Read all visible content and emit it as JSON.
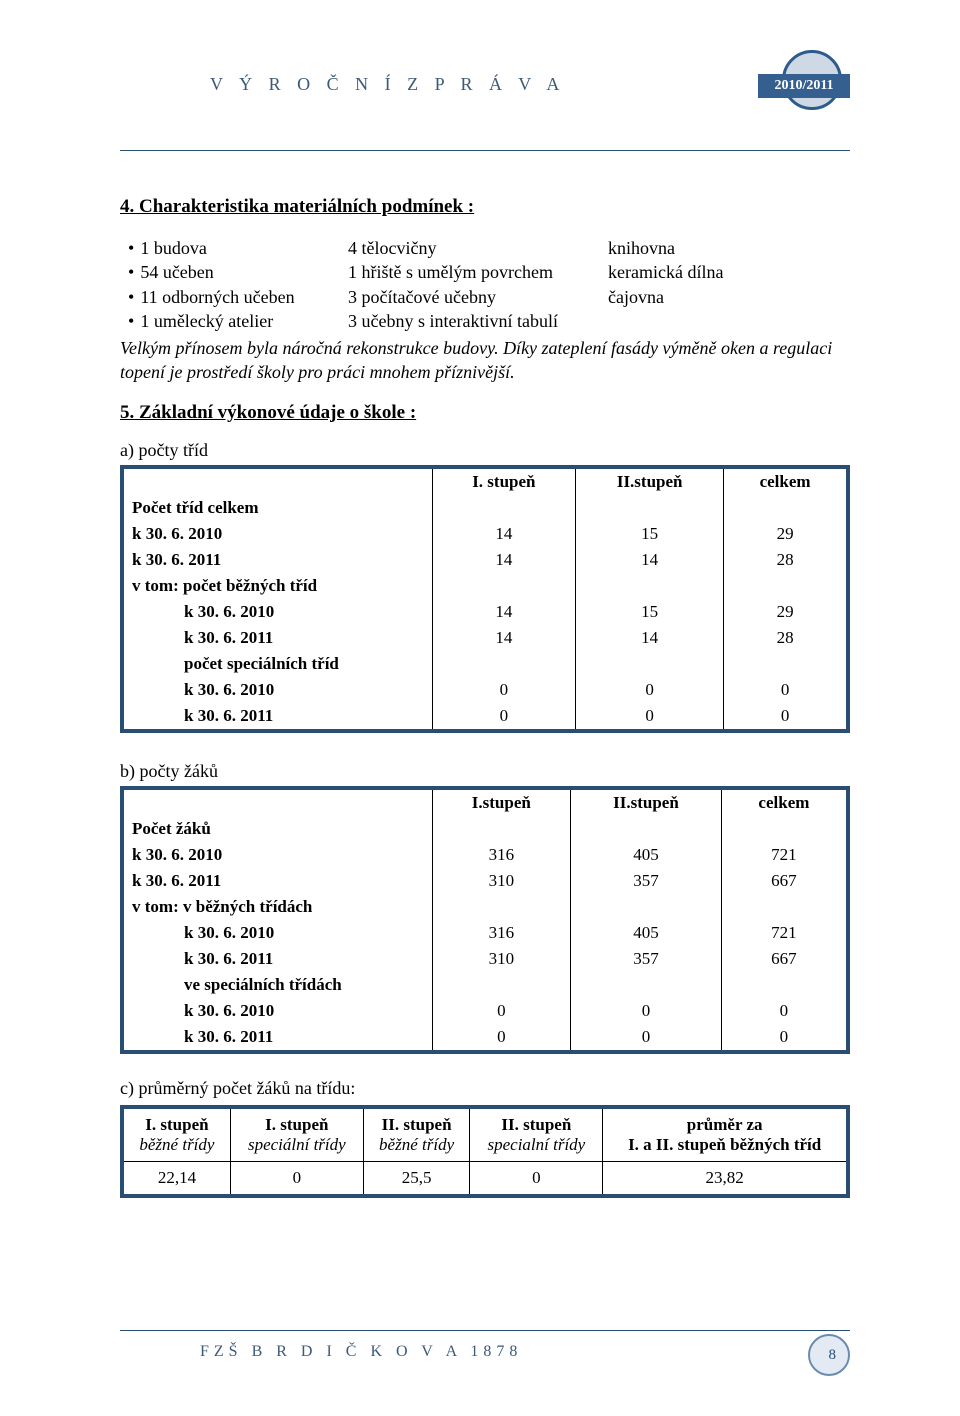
{
  "header": {
    "title": "V Ý R O Č N Í   Z P R Á V A",
    "badge": "2010/2011"
  },
  "section4": {
    "title": "4. Charakteristika materiálních podmínek :",
    "col1": [
      "1 budova",
      "54 učeben",
      "11 odborných učeben",
      "1 umělecký atelier"
    ],
    "col2": [
      "4 tělocvičny",
      "1 hřiště s umělým povrchem",
      "3 počítačové učebny",
      "3 učebny s interaktivní tabulí"
    ],
    "col3": [
      "knihovna",
      "keramická dílna",
      "čajovna"
    ],
    "note": "Velkým přínosem byla náročná rekonstrukce budovy. Díky zateplení fasády výměně oken a regulaci topení je prostředí školy pro práci mnohem příznivější."
  },
  "section5": {
    "title": " 5. Základní výkonové údaje o škole :",
    "table_a": {
      "label": "a) počty tříd",
      "columns": [
        "",
        "I. stupeň",
        "II.stupeň",
        "celkem"
      ],
      "rows": [
        {
          "label": "Počet tříd celkem",
          "cells": [
            "",
            "",
            ""
          ],
          "header": true
        },
        {
          "label": "k 30. 6. 2010",
          "cells": [
            "14",
            "15",
            "29"
          ]
        },
        {
          "label": "k 30. 6. 2011",
          "cells": [
            "14",
            "14",
            "28"
          ]
        },
        {
          "label": "v tom: počet běžných tříd",
          "cells": [
            "",
            "",
            ""
          ],
          "header": true
        },
        {
          "label": "k 30. 6. 2010",
          "cells": [
            "14",
            "15",
            "29"
          ],
          "sub": true
        },
        {
          "label": "k 30. 6. 2011",
          "cells": [
            "14",
            "14",
            "28"
          ],
          "sub": true
        },
        {
          "label": "počet speciálních tříd",
          "cells": [
            "",
            "",
            ""
          ],
          "header": true,
          "sub": true
        },
        {
          "label": "k 30. 6. 2010",
          "cells": [
            "0",
            "0",
            "0"
          ],
          "sub": true
        },
        {
          "label": "k 30. 6. 2011",
          "cells": [
            "0",
            "0",
            "0"
          ],
          "sub": true
        }
      ]
    },
    "table_b": {
      "label": "b)  počty žáků",
      "columns": [
        "",
        "I.stupeň",
        "II.stupeň",
        "celkem"
      ],
      "rows": [
        {
          "label": "Počet žáků",
          "cells": [
            "",
            "",
            ""
          ],
          "header": true
        },
        {
          "label": "k 30. 6. 2010",
          "cells": [
            "316",
            "405",
            "721"
          ]
        },
        {
          "label": "k 30. 6. 2011",
          "cells": [
            "310",
            "357",
            "667"
          ]
        },
        {
          "label": "v tom: v běžných třídách",
          "cells": [
            "",
            "",
            ""
          ],
          "header": true
        },
        {
          "label": "k 30. 6. 2010",
          "cells": [
            "316",
            "405",
            "721"
          ],
          "sub": true
        },
        {
          "label": "k 30. 6. 2011",
          "cells": [
            "310",
            "357",
            "667"
          ],
          "sub": true
        },
        {
          "label": "ve speciálních třídách",
          "cells": [
            "",
            "",
            ""
          ],
          "header": true,
          "sub": true
        },
        {
          "label": "k 30. 6. 2010",
          "cells": [
            "0",
            "0",
            "0"
          ],
          "sub": true
        },
        {
          "label": "k 30. 6. 2011",
          "cells": [
            "0",
            "0",
            "0"
          ],
          "sub": true
        }
      ]
    },
    "table_c": {
      "label": "c)  průměrný počet žáků na  třídu:",
      "headers": [
        {
          "l1": "I. stupeň",
          "l2": "běžné třídy"
        },
        {
          "l1": "I. stupeň",
          "l2": "speciální třídy"
        },
        {
          "l1": "II. stupeň",
          "l2": "běžné třídy"
        },
        {
          "l1": "II. stupeň",
          "l2": "specialní třídy"
        },
        {
          "l1": "průměr za",
          "l2": "I. a II. stupeň běžných tříd"
        }
      ],
      "values": [
        "22,14",
        "0",
        "25,5",
        "0",
        "23,82"
      ]
    }
  },
  "footer": {
    "title": "FZŠ  B R D I Č K O V A  1878",
    "page": "8"
  },
  "colors": {
    "accent": "#2a4d74",
    "badge_bg": "#345f8f",
    "badge_ring": "#2d5b8c"
  }
}
